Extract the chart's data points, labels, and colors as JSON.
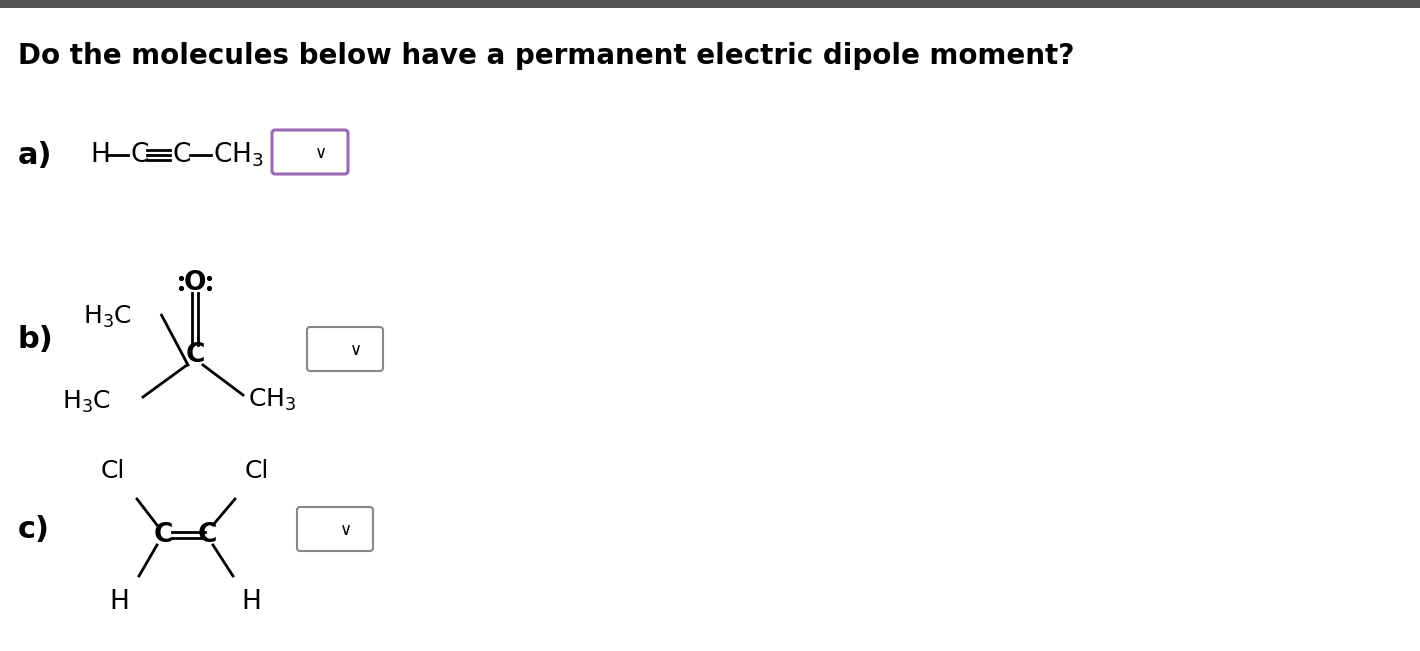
{
  "title": "Do the molecules below have a permanent electric dipole moment?",
  "title_fontsize": 20,
  "bg_color": "#ffffff",
  "label_a": "a)",
  "label_b": "b)",
  "label_c": "c)",
  "label_fontsize": 22,
  "mol_fontsize": 17,
  "dropdown_color_a": "#9b6bb5",
  "dropdown_color_bc": "#888888",
  "dropdown_linewidth": 1.5,
  "top_bar_color": "#555555",
  "top_bar_height": 8
}
